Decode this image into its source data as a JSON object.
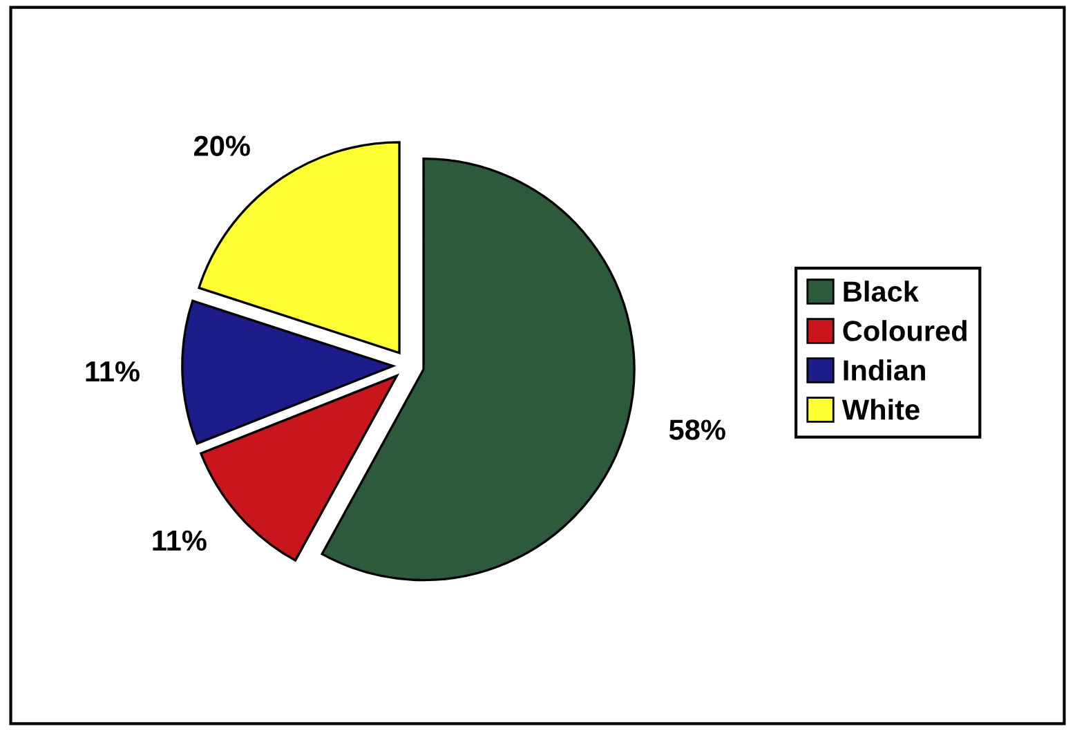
{
  "chart_data": {
    "type": "pie",
    "categories": [
      "Black",
      "Coloured",
      "Indian",
      "White"
    ],
    "values": [
      58,
      11,
      11,
      20
    ],
    "colors": [
      "#2e5a3c",
      "#c8161c",
      "#1c1c8a",
      "#ffff33"
    ],
    "value_labels": [
      "58%",
      "11%",
      "11%",
      "20%"
    ],
    "legend": "right"
  }
}
